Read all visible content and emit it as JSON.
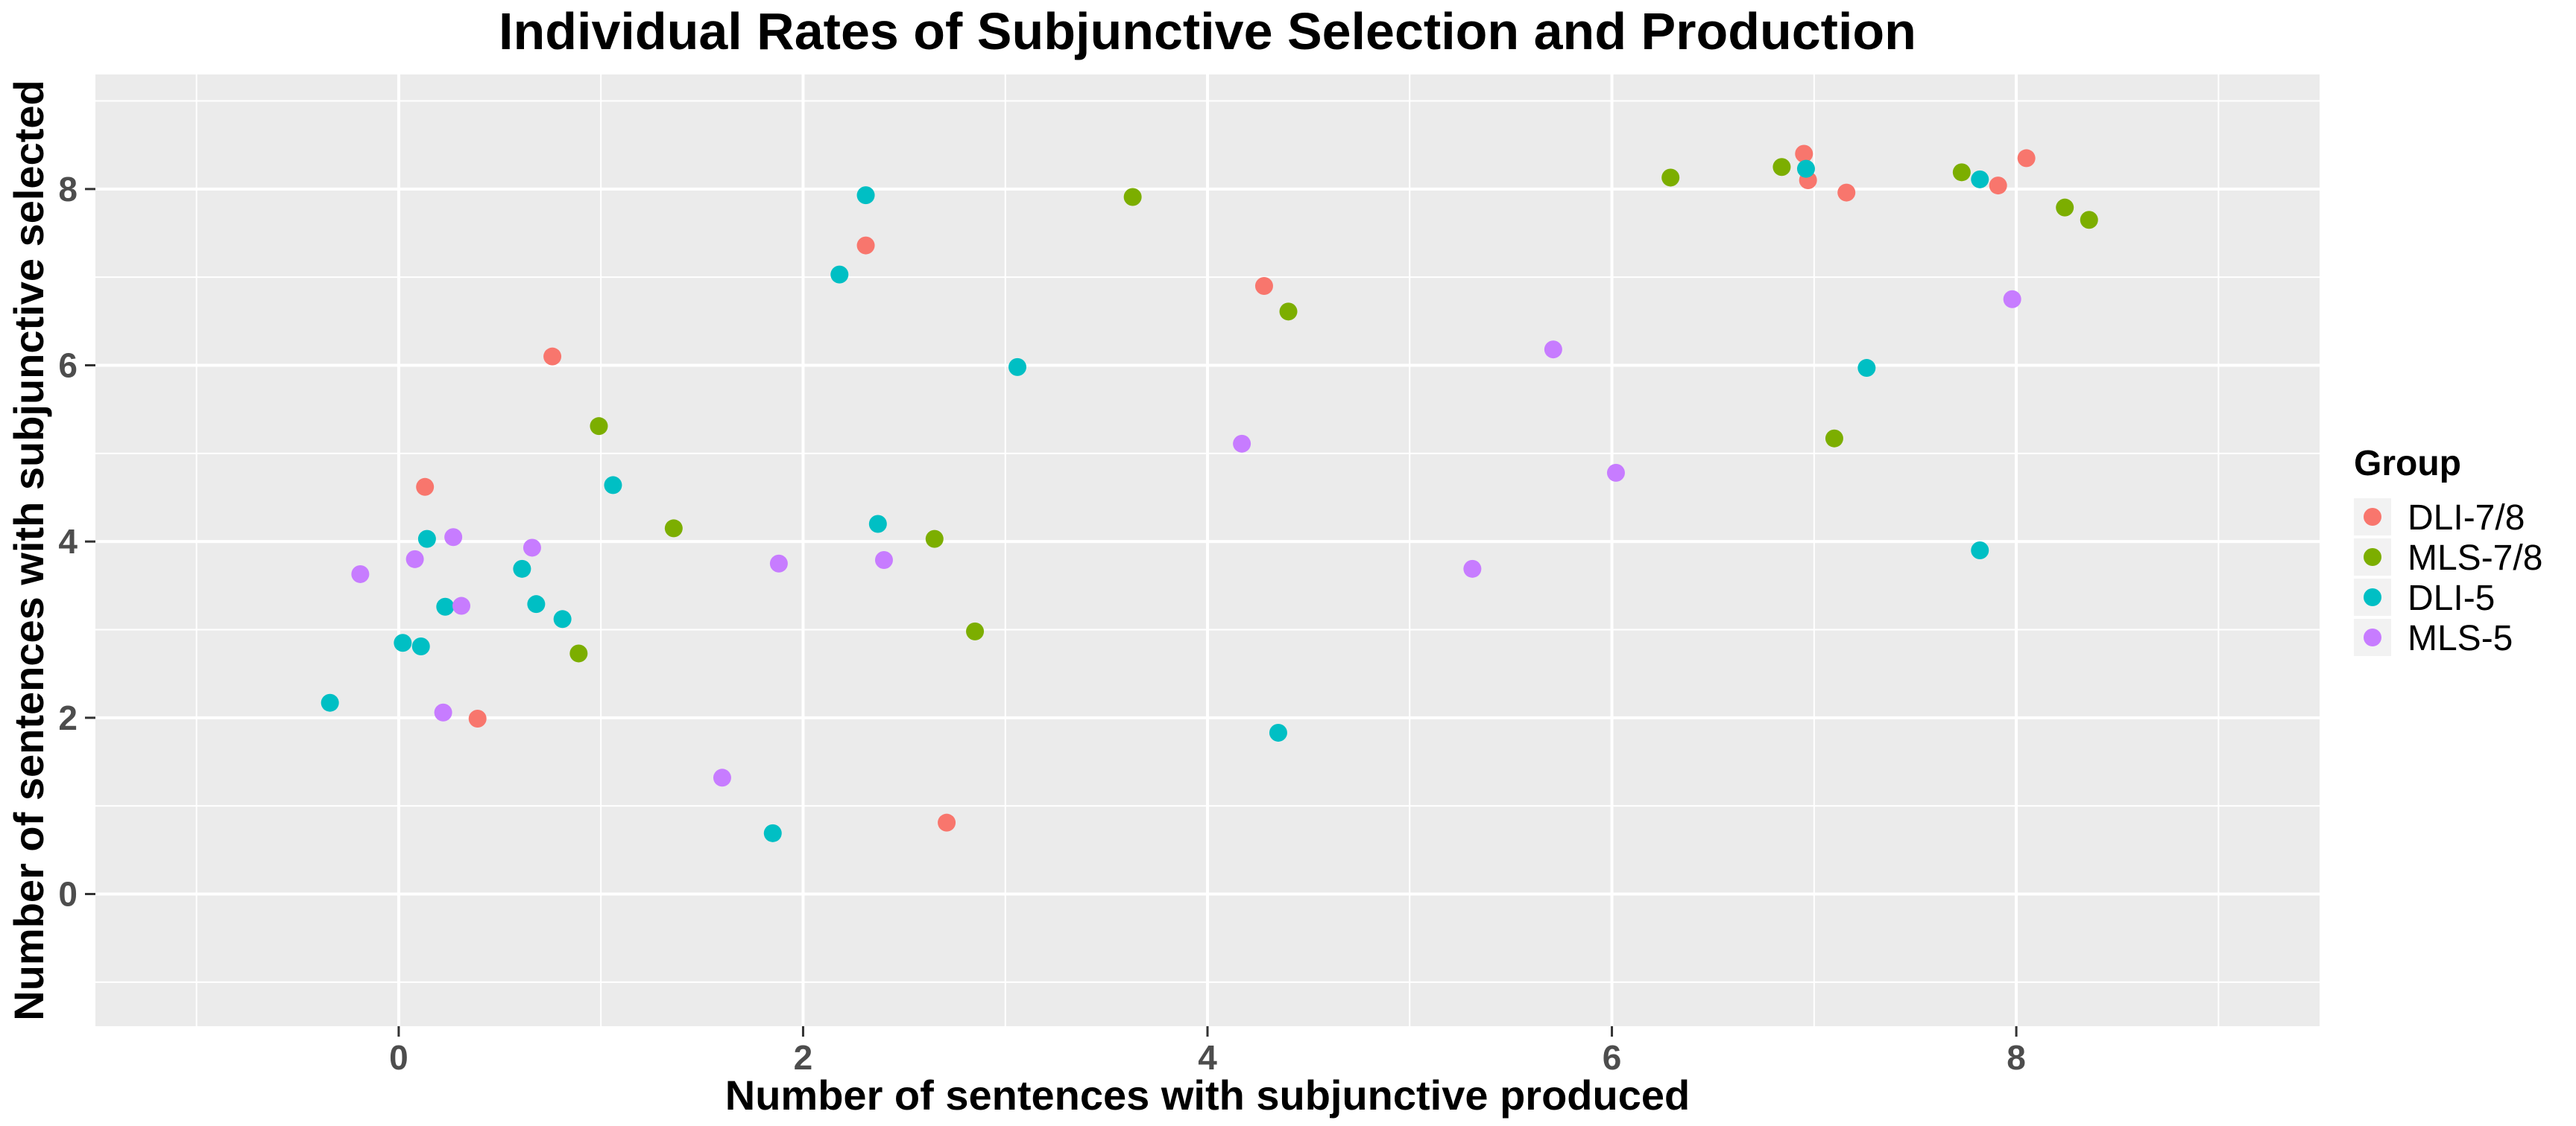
{
  "chart_data": {
    "type": "scatter",
    "title": "Individual Rates of Subjunctive Selection and Production",
    "xlabel": "Number of sentences with subjunctive produced",
    "ylabel": "Number of sentences with subjunctive selected",
    "xlim": [
      -1.5,
      9.5
    ],
    "ylim": [
      -1.5,
      9.3
    ],
    "x_ticks": [
      0,
      2,
      4,
      6,
      8
    ],
    "y_ticks": [
      0,
      2,
      4,
      6,
      8
    ],
    "x_tick_labels": [
      "0",
      "2",
      "4",
      "6",
      "8"
    ],
    "y_tick_labels": [
      "0",
      "2",
      "4",
      "6",
      "8"
    ],
    "grid": true,
    "legend": {
      "title": "Group",
      "position": "right"
    },
    "series": [
      {
        "name": "DLI-7/8",
        "color": "#F8766D",
        "points": [
          [
            6.95,
            8.4
          ],
          [
            8.05,
            8.35
          ],
          [
            6.97,
            8.1
          ],
          [
            7.16,
            7.96
          ],
          [
            7.91,
            8.04
          ],
          [
            2.31,
            7.36
          ],
          [
            4.28,
            6.9
          ],
          [
            0.76,
            6.1
          ],
          [
            0.13,
            4.62
          ],
          [
            0.39,
            1.99
          ],
          [
            2.71,
            0.81
          ]
        ]
      },
      {
        "name": "MLS-7/8",
        "color": "#7CAE00",
        "points": [
          [
            6.84,
            8.25
          ],
          [
            7.73,
            8.19
          ],
          [
            6.29,
            8.13
          ],
          [
            3.63,
            7.91
          ],
          [
            8.24,
            7.79
          ],
          [
            8.36,
            7.65
          ],
          [
            4.4,
            6.61
          ],
          [
            0.99,
            5.31
          ],
          [
            7.1,
            5.17
          ],
          [
            1.36,
            4.15
          ],
          [
            2.65,
            4.03
          ],
          [
            2.85,
            2.98
          ],
          [
            0.89,
            2.73
          ]
        ]
      },
      {
        "name": "DLI-5",
        "color": "#00BFC4",
        "points": [
          [
            6.96,
            8.23
          ],
          [
            7.82,
            8.11
          ],
          [
            2.31,
            7.93
          ],
          [
            2.18,
            7.03
          ],
          [
            3.06,
            5.98
          ],
          [
            7.26,
            5.97
          ],
          [
            1.06,
            4.64
          ],
          [
            2.37,
            4.2
          ],
          [
            0.14,
            4.03
          ],
          [
            0.61,
            3.69
          ],
          [
            7.82,
            3.9
          ],
          [
            0.68,
            3.29
          ],
          [
            0.23,
            3.26
          ],
          [
            0.81,
            3.12
          ],
          [
            0.02,
            2.85
          ],
          [
            0.11,
            2.81
          ],
          [
            -0.34,
            2.17
          ],
          [
            4.35,
            1.83
          ],
          [
            1.85,
            0.69
          ]
        ]
      },
      {
        "name": "MLS-5",
        "color": "#C77CFF",
        "points": [
          [
            7.98,
            6.75
          ],
          [
            5.71,
            6.18
          ],
          [
            4.17,
            5.11
          ],
          [
            6.02,
            4.78
          ],
          [
            0.27,
            4.05
          ],
          [
            0.66,
            3.93
          ],
          [
            0.08,
            3.8
          ],
          [
            2.4,
            3.79
          ],
          [
            1.88,
            3.75
          ],
          [
            5.31,
            3.69
          ],
          [
            -0.19,
            3.63
          ],
          [
            0.31,
            3.27
          ],
          [
            0.22,
            2.06
          ],
          [
            1.6,
            1.32
          ]
        ]
      }
    ]
  }
}
